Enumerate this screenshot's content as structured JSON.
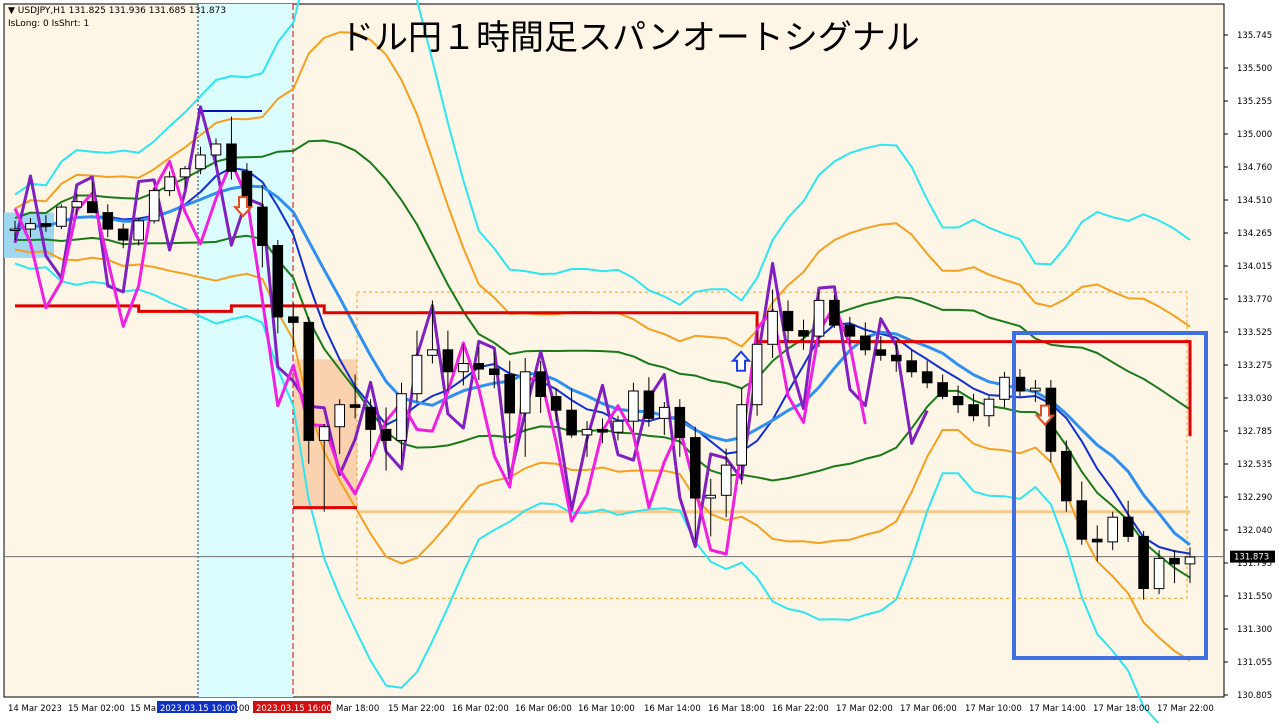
{
  "title": "ドル円１時間足スパンオートシグナル",
  "info": {
    "line1": "▼ USDJPY,H1  131.825 131.936 131.685 131.873",
    "line2": "IsLong: 0 IsShrt: 1"
  },
  "colors": {
    "background": "#fdf5e6",
    "cyan_zone": "#dcfdfd",
    "bull_candle": "#ffffff",
    "bear_candle": "#000000",
    "red_line": "#e00000",
    "upper_band_cyan": "#2ee6f0",
    "band_orange": "#f4a020",
    "band_green": "#1a7a1a",
    "ma_blue": "#1030d0",
    "ma_lightblue": "#3090f0",
    "span_purple": "#8020c0",
    "span_magenta": "#f020e0",
    "highlight_box": "#4070e0"
  },
  "chart_data": {
    "type": "candlestick",
    "symbol": "USDJPY",
    "timeframe": "H1",
    "ylim": [
      130.85,
      135.9
    ],
    "y_ticks": [
      "135.745",
      "135.500",
      "135.255",
      "135.000",
      "134.760",
      "134.510",
      "134.265",
      "134.015",
      "133.770",
      "133.525",
      "133.275",
      "133.030",
      "132.785",
      "132.535",
      "132.290",
      "132.040",
      "131.795",
      "131.550",
      "131.300",
      "131.055",
      "130.805"
    ],
    "x_ticks": [
      "14 Mar 2023",
      "15 Mar 02:00",
      "15 Ma",
      "2023.03.15 10:00",
      ":00",
      "2023.03.15 16:00",
      "Mar 18:00",
      "15 Mar 22:00",
      "16 Mar 02:00",
      "16 Mar 06:00",
      "16 Mar 10:00",
      "16 Mar 14:00",
      "16 Mar 18:00",
      "16 Mar 22:00",
      "17 Mar 02:00",
      "17 Mar 06:00",
      "17 Mar 10:00",
      "17 Mar 14:00",
      "17 Mar 18:00",
      "17 Mar 22:00"
    ],
    "current_price": "131.873",
    "candles": [
      [
        134.25,
        134.32,
        134.18,
        134.26
      ],
      [
        134.26,
        134.34,
        134.2,
        134.3
      ],
      [
        134.3,
        134.36,
        134.24,
        134.28
      ],
      [
        134.28,
        134.44,
        134.26,
        134.42
      ],
      [
        134.42,
        134.52,
        134.36,
        134.46
      ],
      [
        134.46,
        134.6,
        134.38,
        134.38
      ],
      [
        134.38,
        134.44,
        134.2,
        134.26
      ],
      [
        134.26,
        134.3,
        134.12,
        134.18
      ],
      [
        134.18,
        134.34,
        134.14,
        134.32
      ],
      [
        134.32,
        134.56,
        134.3,
        134.54
      ],
      [
        134.54,
        134.68,
        134.5,
        134.64
      ],
      [
        134.64,
        134.72,
        134.56,
        134.7
      ],
      [
        134.7,
        134.86,
        134.66,
        134.8
      ],
      [
        134.8,
        134.92,
        134.72,
        134.88
      ],
      [
        134.88,
        135.08,
        134.62,
        134.68
      ],
      [
        134.68,
        134.74,
        134.4,
        134.42
      ],
      [
        134.42,
        134.58,
        133.98,
        134.14
      ],
      [
        134.14,
        134.18,
        133.5,
        133.62
      ],
      [
        133.62,
        133.72,
        133.4,
        133.58
      ],
      [
        133.58,
        133.62,
        132.55,
        132.72
      ],
      [
        132.72,
        132.84,
        132.2,
        132.82
      ],
      [
        132.82,
        133.02,
        132.62,
        132.98
      ],
      [
        132.98,
        133.2,
        132.88,
        132.96
      ],
      [
        132.96,
        133.02,
        132.6,
        132.8
      ],
      [
        132.8,
        132.96,
        132.5,
        132.72
      ],
      [
        132.72,
        133.14,
        132.56,
        133.06
      ],
      [
        133.06,
        133.52,
        133.0,
        133.34
      ],
      [
        133.34,
        133.74,
        133.28,
        133.38
      ],
      [
        133.38,
        133.52,
        133.08,
        133.22
      ],
      [
        133.22,
        133.42,
        133.12,
        133.28
      ],
      [
        133.28,
        133.4,
        133.16,
        133.24
      ],
      [
        133.24,
        133.36,
        133.1,
        133.2
      ],
      [
        133.2,
        133.3,
        132.7,
        132.92
      ],
      [
        132.92,
        133.32,
        132.6,
        133.22
      ],
      [
        133.22,
        133.3,
        132.92,
        133.04
      ],
      [
        133.04,
        133.1,
        132.86,
        132.94
      ],
      [
        132.94,
        133.1,
        132.74,
        132.76
      ],
      [
        132.76,
        132.86,
        132.6,
        132.8
      ],
      [
        132.8,
        132.88,
        132.7,
        132.78
      ],
      [
        132.78,
        132.9,
        132.72,
        132.86
      ],
      [
        132.86,
        133.14,
        132.78,
        133.08
      ],
      [
        133.08,
        133.18,
        132.82,
        132.88
      ],
      [
        132.88,
        133.0,
        132.76,
        132.96
      ],
      [
        132.96,
        133.02,
        132.6,
        132.74
      ],
      [
        132.74,
        132.82,
        132.0,
        132.3
      ],
      [
        132.3,
        132.44,
        132.02,
        132.32
      ],
      [
        132.32,
        132.66,
        132.16,
        132.54
      ],
      [
        132.54,
        133.1,
        132.4,
        132.98
      ],
      [
        132.98,
        133.52,
        132.9,
        133.42
      ],
      [
        133.42,
        133.82,
        133.32,
        133.66
      ],
      [
        133.66,
        133.74,
        133.44,
        133.52
      ],
      [
        133.52,
        133.6,
        133.38,
        133.48
      ],
      [
        133.48,
        133.8,
        133.4,
        133.74
      ],
      [
        133.74,
        133.78,
        133.54,
        133.56
      ],
      [
        133.56,
        133.62,
        133.42,
        133.48
      ],
      [
        133.48,
        133.58,
        133.34,
        133.38
      ],
      [
        133.38,
        133.48,
        133.3,
        133.34
      ],
      [
        133.34,
        133.44,
        133.22,
        133.3
      ],
      [
        133.3,
        133.38,
        133.18,
        133.22
      ],
      [
        133.22,
        133.3,
        133.1,
        133.14
      ],
      [
        133.14,
        133.2,
        133.02,
        133.04
      ],
      [
        133.04,
        133.12,
        132.92,
        132.98
      ],
      [
        132.98,
        133.06,
        132.86,
        132.9
      ],
      [
        132.9,
        133.04,
        132.82,
        133.02
      ],
      [
        133.02,
        133.22,
        132.96,
        133.18
      ],
      [
        133.18,
        133.24,
        133.04,
        133.08
      ],
      [
        133.08,
        133.16,
        133.0,
        133.1
      ],
      [
        133.1,
        133.16,
        132.56,
        132.64
      ],
      [
        132.64,
        132.72,
        132.2,
        132.28
      ],
      [
        132.28,
        132.42,
        131.96,
        132.0
      ],
      [
        132.0,
        132.1,
        131.84,
        131.98
      ],
      [
        131.98,
        132.2,
        131.92,
        132.16
      ],
      [
        132.16,
        132.28,
        131.98,
        132.02
      ],
      [
        132.02,
        132.06,
        131.56,
        131.64
      ],
      [
        131.64,
        131.92,
        131.6,
        131.86
      ],
      [
        131.86,
        131.92,
        131.68,
        131.82
      ],
      [
        131.82,
        131.94,
        131.68,
        131.87
      ]
    ]
  }
}
